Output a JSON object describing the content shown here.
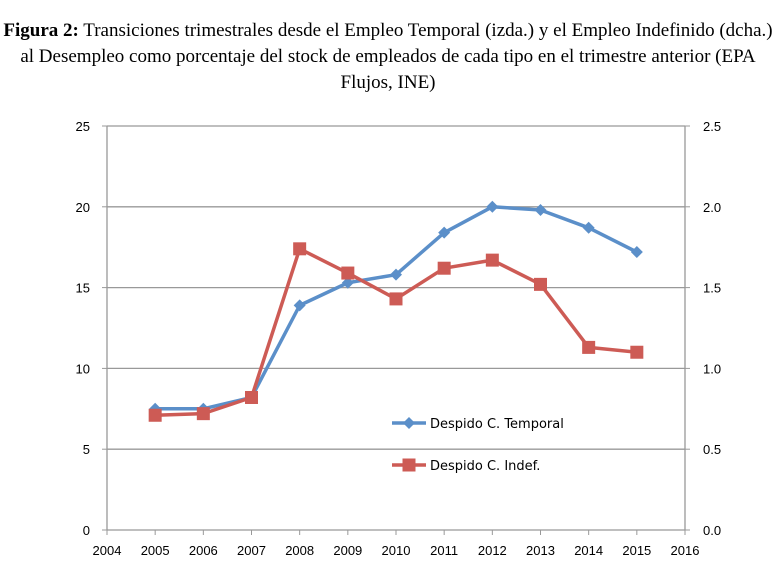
{
  "chart_data": {
    "type": "line",
    "title_bold": "Figura 2:",
    "title": "Transiciones trimestrales desde el Empleo Temporal (izda.) y el Empleo Indefinido (dcha.) al Desempleo como porcentaje del stock de empleados de cada tipo en el trimestre anterior (EPA Flujos, INE)",
    "x": [
      2005,
      2006,
      2007,
      2008,
      2009,
      2010,
      2011,
      2012,
      2013,
      2014,
      2015
    ],
    "xlim": [
      2004,
      2016
    ],
    "xticks": [
      "2004",
      "2005",
      "2006",
      "2007",
      "2008",
      "2009",
      "2010",
      "2011",
      "2012",
      "2013",
      "2014",
      "2015",
      "2016"
    ],
    "ylim": [
      0,
      25
    ],
    "yticks": [
      "0",
      "5",
      "10",
      "15",
      "20",
      "25"
    ],
    "y2lim": [
      0,
      2.5
    ],
    "y2ticks": [
      "0.0",
      "0.5",
      "1.0",
      "1.5",
      "2.0",
      "2.5"
    ],
    "grid": true,
    "legend_position": "center-right inside",
    "series": [
      {
        "name": "Despido C. Temporal",
        "axis": "left",
        "color": "#5b8fc9",
        "marker": "diamond",
        "values": [
          7.5,
          7.5,
          8.2,
          13.9,
          15.3,
          15.8,
          18.4,
          20.0,
          19.8,
          18.7,
          17.2
        ]
      },
      {
        "name": "Despido C. Indef.",
        "axis": "right",
        "color": "#cd5b55",
        "marker": "square",
        "values": [
          0.71,
          0.72,
          0.82,
          1.74,
          1.59,
          1.43,
          1.62,
          1.67,
          1.52,
          1.13,
          1.1
        ]
      }
    ]
  }
}
